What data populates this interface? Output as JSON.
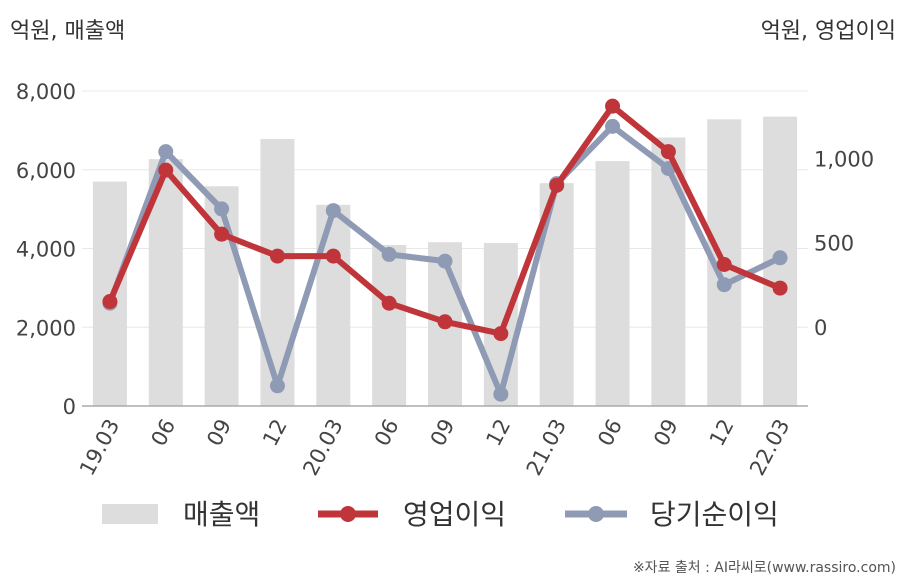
{
  "chart_data": {
    "type": "bar+line",
    "left_axis_unit": "억원, 매출액",
    "right_axis_unit": "억원, 영업이익",
    "categories": [
      "19.03",
      "06",
      "09",
      "12",
      "20.03",
      "06",
      "09",
      "12",
      "21.03",
      "06",
      "09",
      "12",
      "22.03"
    ],
    "left_ylim": [
      0,
      8000
    ],
    "left_ticks": [
      "0",
      "2,000",
      "4,000",
      "6,000",
      "8,000"
    ],
    "right_ylim": [
      -470,
      1400
    ],
    "right_ticks": [
      "0",
      "500",
      "1,000"
    ],
    "series": [
      {
        "name": "매출액",
        "type": "bar",
        "axis": "left",
        "color": "#dddddd",
        "values": [
          5700,
          6270,
          5580,
          6780,
          5110,
          4090,
          4160,
          4140,
          5660,
          6220,
          6820,
          7280,
          7350
        ]
      },
      {
        "name": "영업이익",
        "type": "line",
        "axis": "right",
        "color": "#c0353a",
        "values": [
          150,
          930,
          550,
          420,
          420,
          140,
          30,
          -40,
          840,
          1310,
          1040,
          370,
          230
        ]
      },
      {
        "name": "당기순이익",
        "type": "line",
        "axis": "right",
        "color": "#8f9bb5",
        "values": [
          140,
          1040,
          700,
          -350,
          690,
          430,
          390,
          -400,
          850,
          1190,
          940,
          250,
          410
        ]
      }
    ],
    "grid": true,
    "legend_position": "bottom"
  },
  "source": "※자료 출처 : AI라씨로(www.rassiro.com)"
}
